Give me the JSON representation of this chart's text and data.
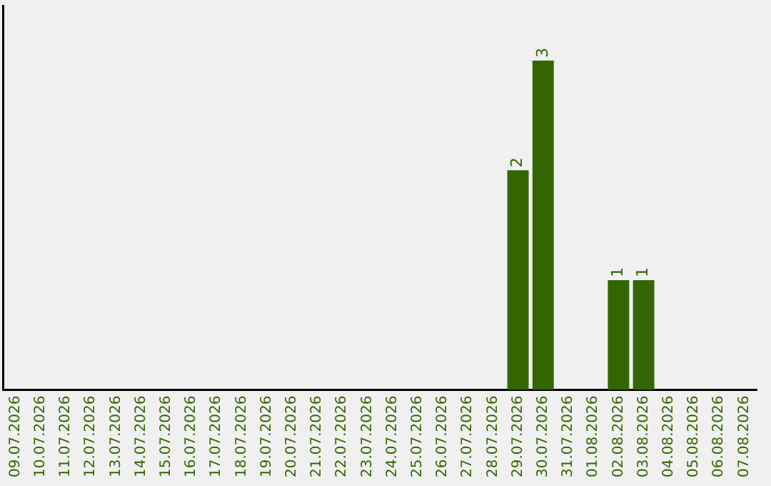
{
  "chart_data": {
    "type": "bar",
    "categories": [
      "09.07.2026",
      "10.07.2026",
      "11.07.2026",
      "12.07.2026",
      "13.07.2026",
      "14.07.2026",
      "15.07.2026",
      "16.07.2026",
      "17.07.2026",
      "18.07.2026",
      "19.07.2026",
      "20.07.2026",
      "21.07.2026",
      "22.07.2026",
      "23.07.2026",
      "24.07.2026",
      "25.07.2026",
      "26.07.2026",
      "27.07.2026",
      "28.07.2026",
      "29.07.2026",
      "30.07.2026",
      "31.07.2026",
      "01.08.2026",
      "02.08.2026",
      "03.08.2026",
      "04.08.2026",
      "05.08.2026",
      "06.08.2026",
      "07.08.2026"
    ],
    "values": [
      null,
      null,
      null,
      null,
      null,
      null,
      null,
      null,
      null,
      null,
      null,
      null,
      null,
      null,
      null,
      null,
      null,
      null,
      null,
      null,
      2,
      3,
      null,
      null,
      1,
      1,
      null,
      null,
      null,
      null
    ],
    "data_labels": true,
    "color": "#336600",
    "grid": false,
    "legend": false,
    "tick_labels": "x"
  }
}
